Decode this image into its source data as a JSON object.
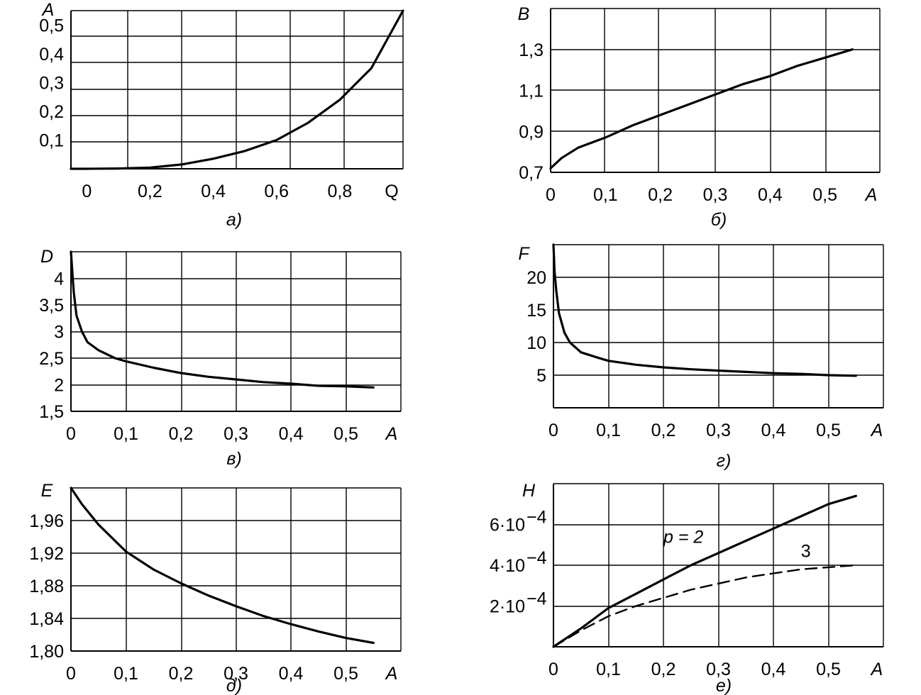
{
  "chart_data": [
    {
      "id": "a",
      "type": "line",
      "caption": "а)",
      "xlabel": "Q",
      "ylabel": "A",
      "xlim": [
        -0.05,
        1.0
      ],
      "ylim": [
        0,
        0.55
      ],
      "xticks": [
        0,
        0.2,
        0.4,
        0.6,
        0.8
      ],
      "xtick_labels": [
        "0",
        "0,2",
        "0,4",
        "0,6",
        "0,8"
      ],
      "yticks": [
        0.1,
        0.2,
        0.3,
        0.4,
        0.5
      ],
      "ytick_labels": [
        "0,1",
        "0,2",
        "0,3",
        "0,4",
        "0,5"
      ],
      "grid": true,
      "series": [
        {
          "x": [
            -0.05,
            0,
            0.1,
            0.2,
            0.3,
            0.4,
            0.5,
            0.6,
            0.7,
            0.8,
            0.9,
            1.0
          ],
          "y": [
            0.0,
            0.0,
            0.001,
            0.004,
            0.015,
            0.035,
            0.062,
            0.1,
            0.16,
            0.24,
            0.35,
            0.55
          ],
          "style": "solid"
        }
      ]
    },
    {
      "id": "b",
      "type": "line",
      "caption": "б)",
      "xlabel": "A",
      "ylabel": "B",
      "xlim": [
        0,
        0.6
      ],
      "ylim": [
        0.7,
        1.5
      ],
      "xticks": [
        0,
        0.1,
        0.2,
        0.3,
        0.4,
        0.5
      ],
      "xtick_labels": [
        "0",
        "0,1",
        "0,2",
        "0,3",
        "0,4",
        "0,5"
      ],
      "yticks": [
        0.7,
        0.9,
        1.1,
        1.3
      ],
      "ytick_labels": [
        "0,7",
        "0,9",
        "1,1",
        "1,3"
      ],
      "grid": true,
      "series": [
        {
          "x": [
            0,
            0.02,
            0.05,
            0.1,
            0.15,
            0.2,
            0.25,
            0.3,
            0.35,
            0.4,
            0.45,
            0.5,
            0.55
          ],
          "y": [
            0.72,
            0.77,
            0.82,
            0.87,
            0.93,
            0.98,
            1.03,
            1.08,
            1.13,
            1.17,
            1.22,
            1.26,
            1.3
          ],
          "style": "solid"
        }
      ]
    },
    {
      "id": "c",
      "type": "line",
      "caption": "в)",
      "xlabel": "A",
      "ylabel": "D",
      "xlim": [
        0,
        0.6
      ],
      "ylim": [
        1.5,
        4.5
      ],
      "xticks": [
        0,
        0.1,
        0.2,
        0.3,
        0.4,
        0.5
      ],
      "xtick_labels": [
        "0",
        "0,1",
        "0,2",
        "0,3",
        "0,4",
        "0,5"
      ],
      "yticks": [
        1.5,
        2,
        2.5,
        3,
        3.5,
        4
      ],
      "ytick_labels": [
        "1,5",
        "2",
        "2,5",
        "3",
        "3,5",
        "4"
      ],
      "grid": true,
      "series": [
        {
          "x": [
            0,
            0.002,
            0.005,
            0.01,
            0.02,
            0.03,
            0.05,
            0.08,
            0.1,
            0.15,
            0.2,
            0.25,
            0.3,
            0.35,
            0.4,
            0.45,
            0.5,
            0.55
          ],
          "y": [
            4.5,
            4.2,
            3.75,
            3.3,
            3.0,
            2.8,
            2.65,
            2.5,
            2.44,
            2.32,
            2.22,
            2.15,
            2.1,
            2.05,
            2.02,
            1.98,
            1.97,
            1.95
          ],
          "style": "solid"
        }
      ]
    },
    {
      "id": "d",
      "type": "line",
      "caption": "г)",
      "xlabel": "A",
      "ylabel": "F",
      "xlim": [
        0,
        0.6
      ],
      "ylim": [
        0,
        25
      ],
      "xticks": [
        0,
        0.1,
        0.2,
        0.3,
        0.4,
        0.5
      ],
      "xtick_labels": [
        "0",
        "0,1",
        "0,2",
        "0,3",
        "0,4",
        "0,5"
      ],
      "yticks": [
        5,
        10,
        15,
        20
      ],
      "ytick_labels": [
        "5",
        "10",
        "15",
        "20"
      ],
      "grid": true,
      "series": [
        {
          "x": [
            0,
            0.002,
            0.005,
            0.01,
            0.02,
            0.03,
            0.05,
            0.08,
            0.1,
            0.15,
            0.2,
            0.25,
            0.3,
            0.35,
            0.4,
            0.45,
            0.5,
            0.55
          ],
          "y": [
            25,
            21,
            18,
            14.5,
            11.5,
            10,
            8.5,
            7.7,
            7.2,
            6.6,
            6.2,
            5.9,
            5.7,
            5.5,
            5.3,
            5.2,
            5.0,
            4.9
          ],
          "style": "solid"
        }
      ]
    },
    {
      "id": "e",
      "type": "line",
      "caption": "д)",
      "xlabel": "A",
      "ylabel": "E",
      "xlim": [
        0,
        0.6
      ],
      "ylim": [
        1.8,
        2.0
      ],
      "xticks": [
        0,
        0.1,
        0.2,
        0.3,
        0.4,
        0.5
      ],
      "xtick_labels": [
        "0",
        "0,1",
        "0,2",
        "0,3",
        "0,4",
        "0,5"
      ],
      "yticks": [
        1.8,
        1.84,
        1.88,
        1.92,
        1.96
      ],
      "ytick_labels": [
        "1,80",
        "1,84",
        "1,88",
        "1,92",
        "1,96"
      ],
      "grid": true,
      "series": [
        {
          "x": [
            0,
            0.02,
            0.05,
            0.1,
            0.15,
            0.2,
            0.25,
            0.3,
            0.35,
            0.4,
            0.45,
            0.5,
            0.55
          ],
          "y": [
            2.0,
            1.98,
            1.955,
            1.922,
            1.9,
            1.883,
            1.868,
            1.855,
            1.843,
            1.833,
            1.824,
            1.816,
            1.81
          ],
          "style": "solid"
        }
      ]
    },
    {
      "id": "f",
      "type": "line",
      "caption": "е)",
      "xlabel": "A",
      "ylabel": "H",
      "xlim": [
        0,
        0.6
      ],
      "ylim": [
        0,
        0.0008
      ],
      "xticks": [
        0,
        0.1,
        0.2,
        0.3,
        0.4,
        0.5
      ],
      "xtick_labels": [
        "0",
        "0,1",
        "0,2",
        "0,3",
        "0,4",
        "0,5"
      ],
      "yticks": [
        0.0002,
        0.0004,
        0.0006
      ],
      "ytick_labels": [
        "2·10",
        "4·10",
        "6·10"
      ],
      "ytick_exponent": "−4",
      "grid": true,
      "annotations": [
        {
          "text": "p = 2",
          "x": 0.2,
          "y": 0.00051
        },
        {
          "text": "3",
          "x": 0.45,
          "y": 0.00044
        }
      ],
      "series": [
        {
          "name": "p = 2",
          "x": [
            0,
            0.05,
            0.1,
            0.15,
            0.2,
            0.25,
            0.3,
            0.35,
            0.4,
            0.45,
            0.5,
            0.55
          ],
          "y": [
            0,
            9e-05,
            0.00019,
            0.00026,
            0.00033,
            0.0004,
            0.00046,
            0.00052,
            0.00058,
            0.00064,
            0.0007,
            0.00074
          ],
          "style": "solid"
        },
        {
          "name": "3",
          "x": [
            0,
            0.05,
            0.1,
            0.15,
            0.2,
            0.25,
            0.3,
            0.35,
            0.4,
            0.45,
            0.5,
            0.55
          ],
          "y": [
            0,
            8e-05,
            0.00015,
            0.0002,
            0.00024,
            0.00028,
            0.00031,
            0.00034,
            0.00036,
            0.00038,
            0.00039,
            0.0004
          ],
          "style": "dashed"
        }
      ]
    }
  ]
}
